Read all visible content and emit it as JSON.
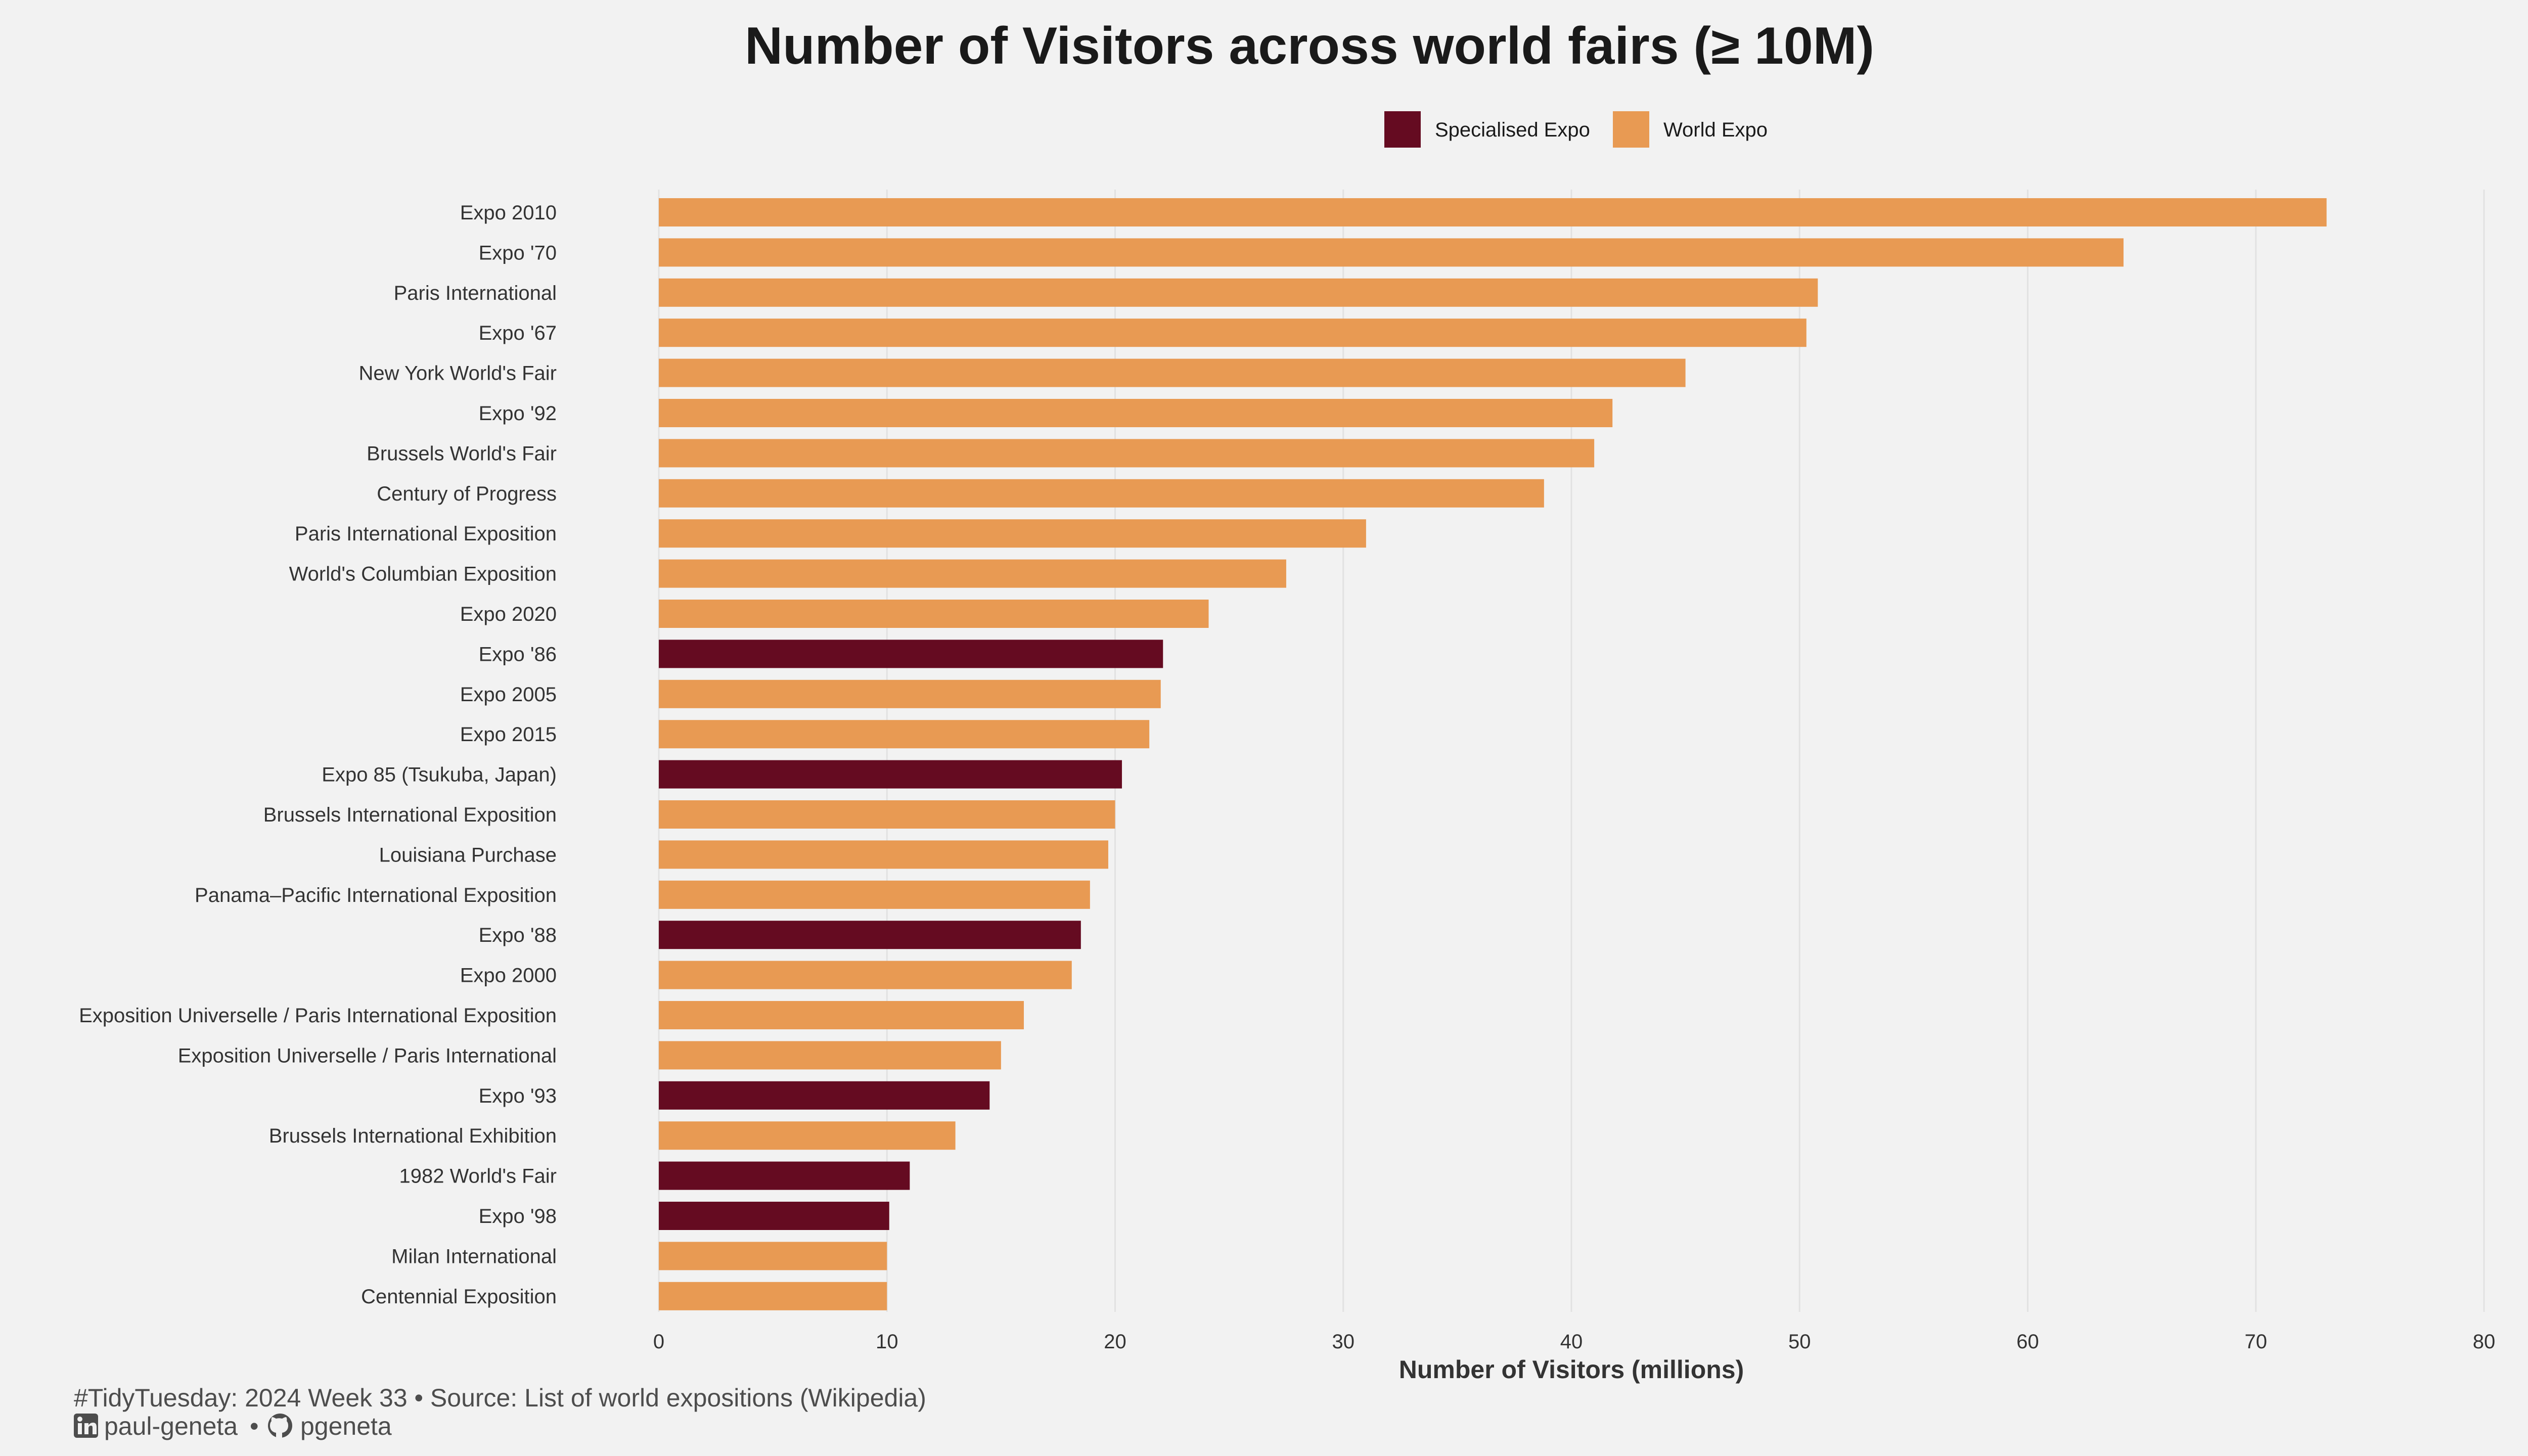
{
  "chart_data": {
    "type": "bar",
    "orientation": "horizontal",
    "title": "Number of Visitors across world fairs (≥ 10M)",
    "xlabel": "Number of Visitors (millions)",
    "ylabel": "",
    "xlim": [
      0,
      80
    ],
    "x_ticks": [
      0,
      10,
      20,
      30,
      40,
      50,
      60,
      70,
      80
    ],
    "grid": "vertical major gridlines",
    "legend_position": "top-right",
    "legend": [
      {
        "key": "specialised",
        "label": "Specialised Expo",
        "color": "#650b21"
      },
      {
        "key": "world",
        "label": "World Expo",
        "color": "#e89a53"
      }
    ],
    "categories": [
      "Expo 2010",
      "Expo '70",
      "Paris International",
      "Expo '67",
      "New York World's Fair",
      "Expo '92",
      "Brussels World's Fair",
      "Century of Progress",
      "Paris International Exposition",
      "World's Columbian Exposition",
      "Expo 2020",
      "Expo '86",
      "Expo 2005",
      "Expo 2015",
      "Expo 85 (Tsukuba, Japan)",
      "Brussels International Exposition",
      "Louisiana Purchase",
      "Panama–Pacific International Exposition",
      "Expo '88",
      "Expo 2000",
      "Exposition Universelle / Paris International Exposition",
      "Exposition Universelle / Paris International",
      "Expo '93",
      "Brussels International Exhibition",
      "1982 World's Fair",
      "Expo '98",
      "Milan International",
      "Centennial Exposition"
    ],
    "values": [
      73.1,
      64.2,
      50.8,
      50.3,
      45.0,
      41.8,
      41.0,
      38.8,
      31.0,
      27.5,
      24.1,
      22.1,
      22.0,
      21.5,
      20.3,
      20.0,
      19.7,
      18.9,
      18.5,
      18.1,
      16.0,
      15.0,
      14.5,
      13.0,
      11.0,
      10.1,
      10.0,
      10.0
    ],
    "types": [
      "world",
      "world",
      "world",
      "world",
      "world",
      "world",
      "world",
      "world",
      "world",
      "world",
      "world",
      "specialised",
      "world",
      "world",
      "specialised",
      "world",
      "world",
      "world",
      "specialised",
      "world",
      "world",
      "world",
      "specialised",
      "world",
      "specialised",
      "specialised",
      "world",
      "world"
    ]
  },
  "caption": {
    "line1": "#TidyTuesday: 2024 Week 33 • Source: List of world expositions (Wikipedia)",
    "linkedin_handle": "paul-geneta",
    "separator": "•",
    "github_handle": "pgeneta",
    "linkedin_icon": "linkedin-icon",
    "github_icon": "github-icon"
  }
}
